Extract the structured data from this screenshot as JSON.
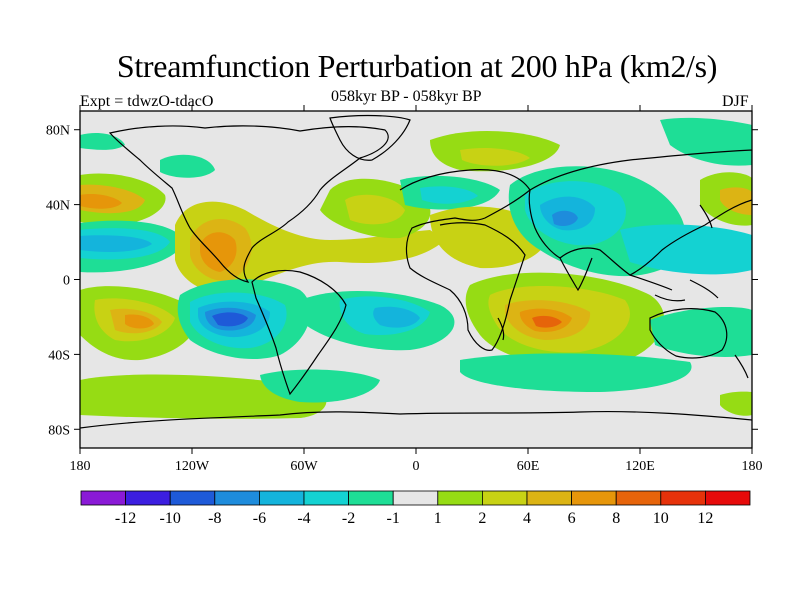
{
  "title": "Streamfunction Perturbation at 200 hPa (km2/s)",
  "experiment": "Expt = tdwzO-tdacO",
  "period": "058kyr BP - 058kyr BP",
  "season": "DJF",
  "map": {
    "projection": "cylindrical-equidistant",
    "lon_range": [
      -180,
      180
    ],
    "lat_range": [
      -90,
      90
    ],
    "lat_ticks": [
      {
        "value": 80,
        "label": "80N"
      },
      {
        "value": 40,
        "label": "40N"
      },
      {
        "value": 0,
        "label": "0"
      },
      {
        "value": -40,
        "label": "40S"
      },
      {
        "value": -80,
        "label": "80S"
      }
    ],
    "lon_ticks": [
      {
        "value": -180,
        "label": "180"
      },
      {
        "value": -120,
        "label": "120W"
      },
      {
        "value": -60,
        "label": "60W"
      },
      {
        "value": 0,
        "label": "0"
      },
      {
        "value": 60,
        "label": "60E"
      },
      {
        "value": 120,
        "label": "120E"
      },
      {
        "value": 180,
        "label": "180"
      }
    ]
  },
  "colorbar": {
    "colors": [
      "#8a1ad6",
      "#3c1ee0",
      "#1e5ad8",
      "#1e8cdc",
      "#14b4dc",
      "#14d2d2",
      "#1ede96",
      "#e6e6e6",
      "#96dc14",
      "#c8d214",
      "#dcb414",
      "#e6960a",
      "#e6640a",
      "#e6320a",
      "#e60a0a"
    ],
    "labels": [
      {
        "index": 1,
        "text": "-12"
      },
      {
        "index": 2,
        "text": "-10"
      },
      {
        "index": 3,
        "text": "-8"
      },
      {
        "index": 4,
        "text": "-6"
      },
      {
        "index": 5,
        "text": "-4"
      },
      {
        "index": 6,
        "text": "-2"
      },
      {
        "index": 7,
        "text": "-1"
      },
      {
        "index": 8,
        "text": "1"
      },
      {
        "index": 9,
        "text": "2"
      },
      {
        "index": 10,
        "text": "4"
      },
      {
        "index": 11,
        "text": "6"
      },
      {
        "index": 12,
        "text": "8"
      },
      {
        "index": 13,
        "text": "10"
      },
      {
        "index": 14,
        "text": "12"
      }
    ]
  },
  "field_features": [
    {
      "lon": -163,
      "lat": 40,
      "value": 4
    },
    {
      "lon": -155,
      "lat": 18,
      "value": -4
    },
    {
      "lon": -103,
      "lat": 20,
      "value": 6
    },
    {
      "lon": -150,
      "lat": -23,
      "value": 6
    },
    {
      "lon": -85,
      "lat": -20,
      "value": -8
    },
    {
      "lon": -30,
      "lat": -22,
      "value": -3
    },
    {
      "lon": 25,
      "lat": 40,
      "value": -2
    },
    {
      "lon": 70,
      "lat": -22,
      "value": 6
    },
    {
      "lon": 72,
      "lat": 30,
      "value": -4
    },
    {
      "lon": 10,
      "lat": 25,
      "value": 2
    },
    {
      "lon": -30,
      "lat": 62,
      "value": 2
    },
    {
      "lon": 170,
      "lat": 42,
      "value": 4
    },
    {
      "lon": -50,
      "lat": -62,
      "value": -1
    }
  ]
}
